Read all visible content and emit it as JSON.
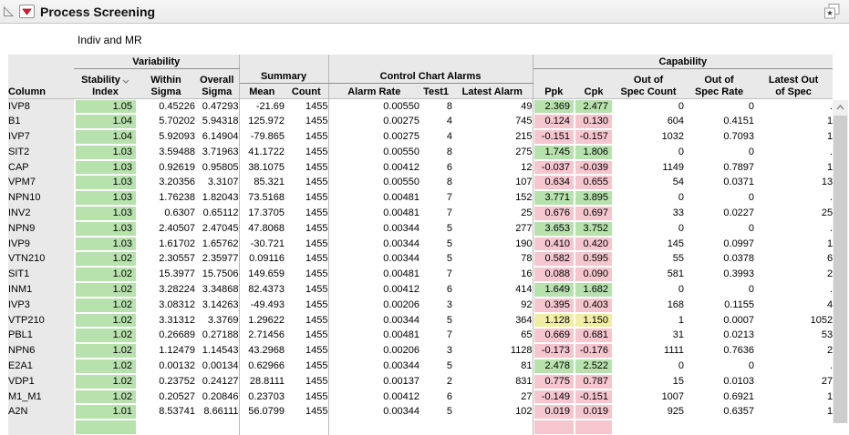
{
  "titlebar": {
    "title": "Process Screening"
  },
  "subtitle": "Indiv and MR",
  "colors": {
    "green": "#b7e2ad",
    "pink": "#f5c6cd",
    "yellow": "#f1eda2",
    "header_bg": "#e9e9e9"
  },
  "header": {
    "column": "Column",
    "groups": {
      "variability": "Variability",
      "summary": "Summary",
      "control_chart_alarms": "Control Chart Alarms",
      "capability": "Capability"
    },
    "stability_l1": "Stability",
    "stability_l2": "Index",
    "within_l1": "Within",
    "within_l2": "Sigma",
    "overall_l1": "Overall",
    "overall_l2": "Sigma",
    "mean": "Mean",
    "count": "Count",
    "alarm_rate": "Alarm Rate",
    "test1": "Test1",
    "latest_alarm": "Latest Alarm",
    "ppk": "Ppk",
    "cpk": "Cpk",
    "oos_count_l1": "Out of",
    "oos_count_l2": "Spec Count",
    "oos_rate_l1": "Out of",
    "oos_rate_l2": "Spec Rate",
    "latest_oos_l1": "Latest Out",
    "latest_oos_l2": "of Spec"
  },
  "table": {
    "fields": [
      {
        "key": "column"
      },
      {
        "key": "stability",
        "colored": true
      },
      {
        "key": "within"
      },
      {
        "key": "overall",
        "sep": true
      },
      {
        "key": "mean"
      },
      {
        "key": "count",
        "sep": true
      },
      {
        "key": "alarm_rate"
      },
      {
        "key": "test1"
      },
      {
        "key": "latest_alarm",
        "sep": true
      },
      {
        "key": "ppk",
        "colored": true
      },
      {
        "key": "cpk",
        "colored": true
      },
      {
        "key": "oos_count"
      },
      {
        "key": "oos_rate"
      },
      {
        "key": "latest_oos"
      }
    ],
    "rows": [
      {
        "column": "IVP8",
        "stability": "1.05",
        "stability_color": "green",
        "within": "0.45226",
        "overall": "0.47293",
        "mean": "-21.69",
        "count": "1455",
        "alarm_rate": "0.00550",
        "test1": "8",
        "latest_alarm": "49",
        "ppk": "2.369",
        "ppk_color": "green",
        "cpk": "2.477",
        "cpk_color": "green",
        "oos_count": "0",
        "oos_rate": "0",
        "latest_oos": "."
      },
      {
        "column": "B1",
        "stability": "1.04",
        "stability_color": "green",
        "within": "5.70202",
        "overall": "5.94318",
        "mean": "125.972",
        "count": "1455",
        "alarm_rate": "0.00275",
        "test1": "4",
        "latest_alarm": "745",
        "ppk": "0.124",
        "ppk_color": "pink",
        "cpk": "0.130",
        "cpk_color": "pink",
        "oos_count": "604",
        "oos_rate": "0.4151",
        "latest_oos": "1"
      },
      {
        "column": "IVP7",
        "stability": "1.04",
        "stability_color": "green",
        "within": "5.92093",
        "overall": "6.14904",
        "mean": "-79.865",
        "count": "1455",
        "alarm_rate": "0.00275",
        "test1": "4",
        "latest_alarm": "215",
        "ppk": "-0.151",
        "ppk_color": "pink",
        "cpk": "-0.157",
        "cpk_color": "pink",
        "oos_count": "1032",
        "oos_rate": "0.7093",
        "latest_oos": "1"
      },
      {
        "column": "SIT2",
        "stability": "1.03",
        "stability_color": "green",
        "within": "3.59488",
        "overall": "3.71963",
        "mean": "41.1722",
        "count": "1455",
        "alarm_rate": "0.00550",
        "test1": "8",
        "latest_alarm": "275",
        "ppk": "1.745",
        "ppk_color": "green",
        "cpk": "1.806",
        "cpk_color": "green",
        "oos_count": "0",
        "oos_rate": "0",
        "latest_oos": "."
      },
      {
        "column": "CAP",
        "stability": "1.03",
        "stability_color": "green",
        "within": "0.92619",
        "overall": "0.95805",
        "mean": "38.1075",
        "count": "1455",
        "alarm_rate": "0.00412",
        "test1": "6",
        "latest_alarm": "12",
        "ppk": "-0.037",
        "ppk_color": "pink",
        "cpk": "-0.039",
        "cpk_color": "pink",
        "oos_count": "1149",
        "oos_rate": "0.7897",
        "latest_oos": "1"
      },
      {
        "column": "VPM7",
        "stability": "1.03",
        "stability_color": "green",
        "within": "3.20356",
        "overall": "3.3107",
        "mean": "85.321",
        "count": "1455",
        "alarm_rate": "0.00550",
        "test1": "8",
        "latest_alarm": "107",
        "ppk": "0.634",
        "ppk_color": "pink",
        "cpk": "0.655",
        "cpk_color": "pink",
        "oos_count": "54",
        "oos_rate": "0.0371",
        "latest_oos": "13"
      },
      {
        "column": "NPN10",
        "stability": "1.03",
        "stability_color": "green",
        "within": "1.76238",
        "overall": "1.82043",
        "mean": "73.5168",
        "count": "1455",
        "alarm_rate": "0.00481",
        "test1": "7",
        "latest_alarm": "152",
        "ppk": "3.771",
        "ppk_color": "green",
        "cpk": "3.895",
        "cpk_color": "green",
        "oos_count": "0",
        "oos_rate": "0",
        "latest_oos": "."
      },
      {
        "column": "INV2",
        "stability": "1.03",
        "stability_color": "green",
        "within": "0.6307",
        "overall": "0.65112",
        "mean": "17.3705",
        "count": "1455",
        "alarm_rate": "0.00481",
        "test1": "7",
        "latest_alarm": "25",
        "ppk": "0.676",
        "ppk_color": "pink",
        "cpk": "0.697",
        "cpk_color": "pink",
        "oos_count": "33",
        "oos_rate": "0.0227",
        "latest_oos": "25"
      },
      {
        "column": "NPN9",
        "stability": "1.03",
        "stability_color": "green",
        "within": "2.40507",
        "overall": "2.47045",
        "mean": "47.8068",
        "count": "1455",
        "alarm_rate": "0.00344",
        "test1": "5",
        "latest_alarm": "277",
        "ppk": "3.653",
        "ppk_color": "green",
        "cpk": "3.752",
        "cpk_color": "green",
        "oos_count": "0",
        "oos_rate": "0",
        "latest_oos": "."
      },
      {
        "column": "IVP9",
        "stability": "1.03",
        "stability_color": "green",
        "within": "1.61702",
        "overall": "1.65762",
        "mean": "-30.721",
        "count": "1455",
        "alarm_rate": "0.00344",
        "test1": "5",
        "latest_alarm": "190",
        "ppk": "0.410",
        "ppk_color": "pink",
        "cpk": "0.420",
        "cpk_color": "pink",
        "oos_count": "145",
        "oos_rate": "0.0997",
        "latest_oos": "1"
      },
      {
        "column": "VTN210",
        "stability": "1.02",
        "stability_color": "green",
        "within": "2.30557",
        "overall": "2.35977",
        "mean": "0.09116",
        "count": "1455",
        "alarm_rate": "0.00344",
        "test1": "5",
        "latest_alarm": "78",
        "ppk": "0.582",
        "ppk_color": "pink",
        "cpk": "0.595",
        "cpk_color": "pink",
        "oos_count": "55",
        "oos_rate": "0.0378",
        "latest_oos": "6"
      },
      {
        "column": "SIT1",
        "stability": "1.02",
        "stability_color": "green",
        "within": "15.3977",
        "overall": "15.7506",
        "mean": "149.659",
        "count": "1455",
        "alarm_rate": "0.00481",
        "test1": "7",
        "latest_alarm": "16",
        "ppk": "0.088",
        "ppk_color": "pink",
        "cpk": "0.090",
        "cpk_color": "pink",
        "oos_count": "581",
        "oos_rate": "0.3993",
        "latest_oos": "2"
      },
      {
        "column": "INM1",
        "stability": "1.02",
        "stability_color": "green",
        "within": "3.28224",
        "overall": "3.34868",
        "mean": "82.4373",
        "count": "1455",
        "alarm_rate": "0.00412",
        "test1": "6",
        "latest_alarm": "414",
        "ppk": "1.649",
        "ppk_color": "green",
        "cpk": "1.682",
        "cpk_color": "green",
        "oos_count": "0",
        "oos_rate": "0",
        "latest_oos": "."
      },
      {
        "column": "IVP3",
        "stability": "1.02",
        "stability_color": "green",
        "within": "3.08312",
        "overall": "3.14263",
        "mean": "-49.493",
        "count": "1455",
        "alarm_rate": "0.00206",
        "test1": "3",
        "latest_alarm": "92",
        "ppk": "0.395",
        "ppk_color": "pink",
        "cpk": "0.403",
        "cpk_color": "pink",
        "oos_count": "168",
        "oos_rate": "0.1155",
        "latest_oos": "4"
      },
      {
        "column": "VTP210",
        "stability": "1.02",
        "stability_color": "green",
        "within": "3.31312",
        "overall": "3.3769",
        "mean": "1.29622",
        "count": "1455",
        "alarm_rate": "0.00344",
        "test1": "5",
        "latest_alarm": "364",
        "ppk": "1.128",
        "ppk_color": "yellow",
        "cpk": "1.150",
        "cpk_color": "yellow",
        "oos_count": "1",
        "oos_rate": "0.0007",
        "latest_oos": "1052"
      },
      {
        "column": "PBL1",
        "stability": "1.02",
        "stability_color": "green",
        "within": "0.26689",
        "overall": "0.27188",
        "mean": "2.71456",
        "count": "1455",
        "alarm_rate": "0.00481",
        "test1": "7",
        "latest_alarm": "65",
        "ppk": "0.669",
        "ppk_color": "pink",
        "cpk": "0.681",
        "cpk_color": "pink",
        "oos_count": "31",
        "oos_rate": "0.0213",
        "latest_oos": "53"
      },
      {
        "column": "NPN6",
        "stability": "1.02",
        "stability_color": "green",
        "within": "1.12479",
        "overall": "1.14543",
        "mean": "43.2968",
        "count": "1455",
        "alarm_rate": "0.00206",
        "test1": "3",
        "latest_alarm": "1128",
        "ppk": "-0.173",
        "ppk_color": "pink",
        "cpk": "-0.176",
        "cpk_color": "pink",
        "oos_count": "1111",
        "oos_rate": "0.7636",
        "latest_oos": "2"
      },
      {
        "column": "E2A1",
        "stability": "1.02",
        "stability_color": "green",
        "within": "0.00132",
        "overall": "0.00134",
        "mean": "0.62966",
        "count": "1455",
        "alarm_rate": "0.00344",
        "test1": "5",
        "latest_alarm": "81",
        "ppk": "2.478",
        "ppk_color": "green",
        "cpk": "2.522",
        "cpk_color": "green",
        "oos_count": "0",
        "oos_rate": "0",
        "latest_oos": "."
      },
      {
        "column": "VDP1",
        "stability": "1.02",
        "stability_color": "green",
        "within": "0.23752",
        "overall": "0.24127",
        "mean": "28.8111",
        "count": "1455",
        "alarm_rate": "0.00137",
        "test1": "2",
        "latest_alarm": "831",
        "ppk": "0.775",
        "ppk_color": "pink",
        "cpk": "0.787",
        "cpk_color": "pink",
        "oos_count": "15",
        "oos_rate": "0.0103",
        "latest_oos": "27"
      },
      {
        "column": "M1_M1",
        "stability": "1.02",
        "stability_color": "green",
        "within": "0.20527",
        "overall": "0.20846",
        "mean": "0.23703",
        "count": "1455",
        "alarm_rate": "0.00412",
        "test1": "6",
        "latest_alarm": "27",
        "ppk": "-0.149",
        "ppk_color": "pink",
        "cpk": "-0.151",
        "cpk_color": "pink",
        "oos_count": "1007",
        "oos_rate": "0.6921",
        "latest_oos": "1"
      },
      {
        "column": "A2N",
        "stability": "1.01",
        "stability_color": "green",
        "within": "8.53741",
        "overall": "8.66111",
        "mean": "56.0799",
        "count": "1455",
        "alarm_rate": "0.00344",
        "test1": "5",
        "latest_alarm": "102",
        "ppk": "0.019",
        "ppk_color": "pink",
        "cpk": "0.019",
        "cpk_color": "pink",
        "oos_count": "925",
        "oos_rate": "0.6357",
        "latest_oos": "1"
      },
      {
        "column": "",
        "stability": "",
        "stability_color": "green",
        "within": "",
        "overall": "",
        "mean": "",
        "count": "",
        "alarm_rate": "",
        "test1": "",
        "latest_alarm": "",
        "ppk": "",
        "ppk_color": "pink",
        "cpk": "",
        "cpk_color": "pink",
        "oos_count": "",
        "oos_rate": "",
        "latest_oos": ""
      }
    ]
  }
}
